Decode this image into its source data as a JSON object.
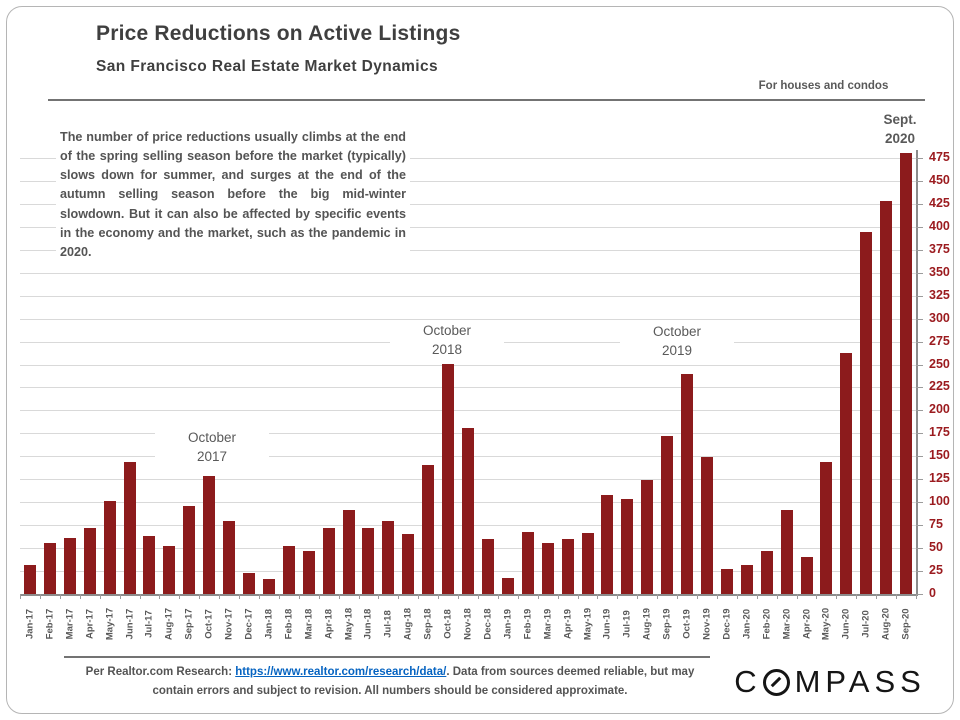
{
  "header": {
    "title": "Price Reductions on Active Listings",
    "subtitle": "San Francisco Real Estate Market Dynamics",
    "tagline": "For houses and condos"
  },
  "commentary": "The number of price reductions usually climbs at the end of the spring selling season before the market (typically) slows down for summer, and surges at the end of the autumn selling season before the big mid-winter slowdown. But it can also be affected by specific events in the economy and the market, such as the pandemic in 2020.",
  "annotations": {
    "oct2017": {
      "line1": "October",
      "line2": "2017"
    },
    "oct2018": {
      "line1": "October",
      "line2": "2018"
    },
    "oct2019": {
      "line1": "October",
      "line2": "2019"
    },
    "sept2020": {
      "line1": "Sept.",
      "line2": "2020"
    }
  },
  "chart_data": {
    "type": "bar",
    "title": "Price Reductions on Active Listings",
    "subtitle": "San Francisco Real Estate Market Dynamics",
    "xlabel": "",
    "ylabel": "",
    "ylim": [
      0,
      475
    ],
    "ytick_step": 25,
    "grid": true,
    "axis_side": "right",
    "legend": "none",
    "bar_color": "#8C1B1C",
    "axis_label_color": "#9B1B1F",
    "categories": [
      "Jan-17",
      "Feb-17",
      "Mar-17",
      "Apr-17",
      "May-17",
      "Jun-17",
      "Jul-17",
      "Aug-17",
      "Sep-17",
      "Oct-17",
      "Nov-17",
      "Dec-17",
      "Jan-18",
      "Feb-18",
      "Mar-18",
      "Apr-18",
      "May-18",
      "Jun-18",
      "Jul-18",
      "Aug-18",
      "Sep-18",
      "Oct-18",
      "Nov-18",
      "Dec-18",
      "Jan-19",
      "Feb-19",
      "Mar-19",
      "Apr-19",
      "May-19",
      "Jun-19",
      "Jul-19",
      "Aug-19",
      "Sep-19",
      "Oct-19",
      "Nov-19",
      "Dec-19",
      "Jan-20",
      "Feb-20",
      "Mar-20",
      "Apr-20",
      "May-20",
      "Jun-20",
      "Jul-20",
      "Aug-20",
      "Sep-20"
    ],
    "values": [
      32,
      56,
      61,
      72,
      101,
      144,
      63,
      52,
      96,
      129,
      80,
      23,
      16,
      52,
      47,
      72,
      92,
      72,
      80,
      65,
      140,
      250,
      181,
      60,
      17,
      68,
      56,
      60,
      66,
      108,
      104,
      124,
      172,
      240,
      149,
      27,
      32,
      47,
      92,
      40,
      144,
      262,
      394,
      428,
      480
    ],
    "point_annotations": [
      {
        "category": "Oct-17",
        "label": "October 2017"
      },
      {
        "category": "Oct-18",
        "label": "October 2018"
      },
      {
        "category": "Oct-19",
        "label": "October 2019"
      },
      {
        "category": "Sep-20",
        "label": "Sept. 2020"
      }
    ]
  },
  "footer": {
    "prefix": "Per Realtor.com  Research:  ",
    "link": "https://www.realtor.com/research/data/",
    "suffix": ". Data from sources deemed reliable, but may contain errors and subject to revision. All numbers should be considered approximate."
  },
  "logo": {
    "text": "COMPASS",
    "pre": "C",
    "post": "MPASS"
  }
}
